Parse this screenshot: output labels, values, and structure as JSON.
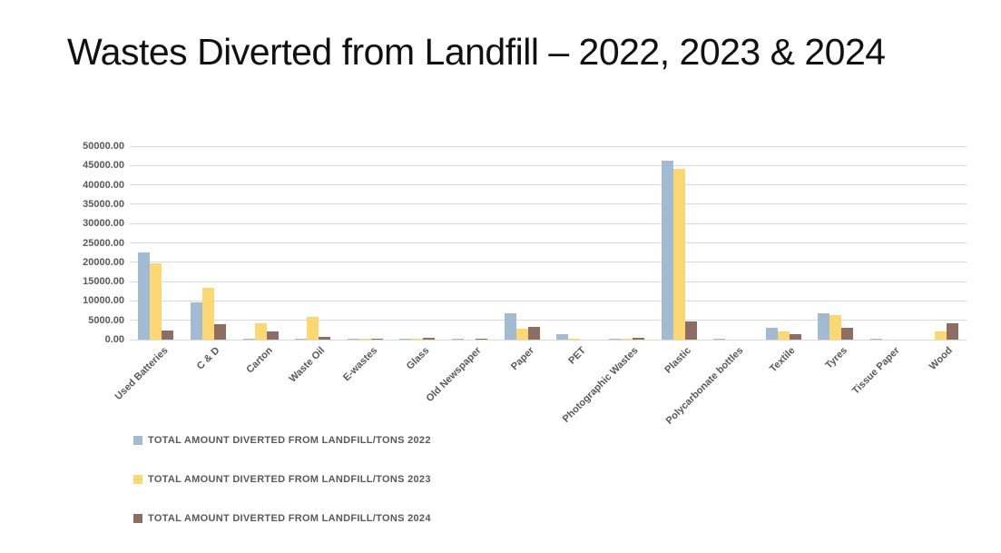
{
  "title": "Wastes Diverted from Landfill – 2022, 2023 & 2024",
  "chart_data": {
    "type": "bar",
    "title": "Wastes Diverted from Landfill – 2022, 2023 & 2024",
    "categories": [
      "Used Batteries",
      "C & D",
      "Carton",
      "Waste Oil",
      "E-wastes",
      "Glass",
      "Old Newspaper",
      "Paper",
      "PET",
      "Photographic Wastes",
      "Plastic",
      "Polycarbonate bottles",
      "Textile",
      "Tyres",
      "Tissue Paper",
      "Wood"
    ],
    "series": [
      {
        "name": "TOTAL AMOUNT DIVERTED FROM LANDFILL/TONS 2022",
        "color": "#a2bad2",
        "values": [
          22600,
          9700,
          300,
          100,
          250,
          250,
          350,
          6900,
          1500,
          100,
          46200,
          350,
          3100,
          6800,
          350,
          0
        ]
      },
      {
        "name": "TOTAL AMOUNT DIVERTED FROM LANDFILL/TONS 2023",
        "color": "#fbd873",
        "values": [
          19800,
          13300,
          4200,
          5800,
          200,
          300,
          0,
          2900,
          150,
          250,
          44200,
          0,
          2100,
          6300,
          0,
          2000
        ]
      },
      {
        "name": "TOTAL AMOUNT DIVERTED FROM LANDFILL/TONS 2024",
        "color": "#8c6e63",
        "values": [
          2300,
          3900,
          2000,
          700,
          50,
          400,
          50,
          3400,
          0,
          400,
          4600,
          0,
          1400,
          3100,
          0,
          4300
        ]
      }
    ],
    "xlabel": "",
    "ylabel": "",
    "ylim": [
      0,
      50000
    ],
    "y_ticks": [
      "0.00",
      "5000.00",
      "10000.00",
      "15000.00",
      "20000.00",
      "25000.00",
      "30000.00",
      "35000.00",
      "40000.00",
      "45000.00",
      "50000.00"
    ],
    "grid": "horizontal",
    "gridline_color": "#d9d9d9",
    "axis_text_color": "#595959",
    "legend_position": "bottom-left"
  }
}
